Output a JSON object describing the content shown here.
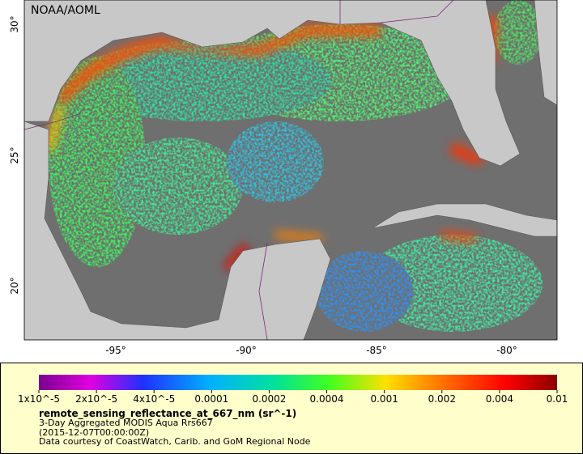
{
  "map": {
    "credit": "NOAA/AOML",
    "lat_labels": [
      "30°",
      "25°",
      "20°"
    ],
    "lon_labels": [
      "-95°",
      "-90°",
      "-85°",
      "-80°"
    ]
  },
  "legend": {
    "ticks": [
      "1x10^-5",
      "2x10^-5",
      "4x10^-5",
      "0.0001",
      "0.0002",
      "0.0004",
      "0.001",
      "0.002",
      "0.004",
      "0.01"
    ],
    "title": "remote_sensing_reflectance_at_667_nm (sr^-1)",
    "lines": [
      "3-Day Aggregated MODIS Aqua Rrs667",
      "(2015-12-07T00:00:00Z)",
      "Data courtesy of CoastWatch, Carib. and GoM Regional Node"
    ]
  }
}
